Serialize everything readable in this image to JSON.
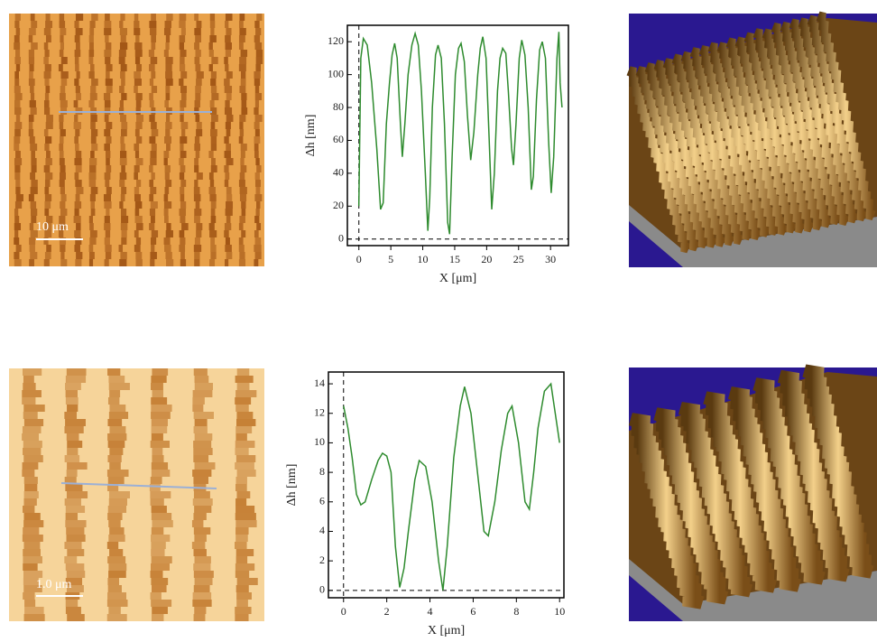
{
  "chart_data": [
    {
      "type": "line",
      "x_label": "X [μm]",
      "y_label": "Δh [nm]",
      "color": "#2e8b2e",
      "xlim": [
        -1.8,
        32.8
      ],
      "ylim": [
        -4,
        130
      ],
      "xticks": [
        0,
        5,
        10,
        15,
        20,
        25,
        30
      ],
      "yticks": [
        0,
        20,
        40,
        60,
        80,
        100,
        120
      ],
      "x": [
        0,
        0.3,
        0.7,
        1.3,
        2,
        2.8,
        3.4,
        3.8,
        4.3,
        4.8,
        5.2,
        5.6,
        6,
        6.5,
        6.8,
        7.2,
        7.7,
        8.3,
        8.8,
        9.3,
        9.8,
        10.4,
        10.8,
        11.1,
        11.5,
        12,
        12.4,
        12.9,
        13.4,
        13.9,
        14.2,
        14.6,
        15.1,
        15.6,
        16,
        16.5,
        17,
        17.5,
        18,
        18.6,
        19,
        19.4,
        19.9,
        20.4,
        20.8,
        21.2,
        21.7,
        22.1,
        22.5,
        23,
        23.4,
        23.9,
        24.2,
        24.6,
        25.1,
        25.5,
        26,
        26.5,
        27,
        27.3,
        27.8,
        28.3,
        28.7,
        29.2,
        29.7,
        30.1,
        30.5,
        31,
        31.3,
        31.5,
        31.8
      ],
      "values": [
        20,
        110,
        122,
        118,
        95,
        55,
        18,
        22,
        70,
        95,
        112,
        119,
        110,
        70,
        50,
        70,
        100,
        118,
        125,
        118,
        90,
        40,
        5,
        25,
        80,
        112,
        118,
        110,
        70,
        10,
        3,
        50,
        100,
        116,
        119,
        108,
        75,
        48,
        65,
        100,
        116,
        123,
        110,
        60,
        18,
        40,
        90,
        110,
        116,
        113,
        90,
        55,
        45,
        70,
        110,
        121,
        112,
        80,
        30,
        38,
        85,
        115,
        120,
        110,
        60,
        28,
        50,
        110,
        126,
        95,
        80
      ]
    },
    {
      "type": "line",
      "x_label": "X [μm]",
      "y_label": "Δh [nm]",
      "color": "#2e8b2e",
      "xlim": [
        -0.7,
        10.2
      ],
      "ylim": [
        -0.5,
        14.8
      ],
      "xticks": [
        0,
        2,
        4,
        6,
        8,
        10
      ],
      "yticks": [
        0,
        2,
        4,
        6,
        8,
        10,
        12,
        14
      ],
      "x": [
        0,
        0.2,
        0.4,
        0.6,
        0.8,
        1,
        1.3,
        1.6,
        1.8,
        2,
        2.2,
        2.4,
        2.6,
        2.8,
        3,
        3.3,
        3.5,
        3.8,
        4.1,
        4.4,
        4.6,
        4.8,
        5.1,
        5.4,
        5.6,
        5.9,
        6.2,
        6.5,
        6.7,
        7,
        7.3,
        7.6,
        7.8,
        8.1,
        8.4,
        8.6,
        8.8,
        9,
        9.3,
        9.6,
        9.8,
        10
      ],
      "values": [
        12.5,
        11,
        9,
        6.5,
        5.8,
        6,
        7.5,
        8.8,
        9.3,
        9.1,
        8,
        3,
        0.2,
        1.5,
        4,
        7.5,
        8.8,
        8.4,
        6,
        2,
        0,
        3,
        9,
        12.5,
        13.8,
        12,
        8,
        4,
        3.7,
        6,
        9.5,
        12,
        12.5,
        10,
        6,
        5.5,
        8,
        11,
        13.5,
        14,
        12,
        10
      ]
    }
  ],
  "panels": [
    {
      "scale_bar": "10 μm"
    },
    {
      "scale_bar": "1.0 μm"
    }
  ]
}
